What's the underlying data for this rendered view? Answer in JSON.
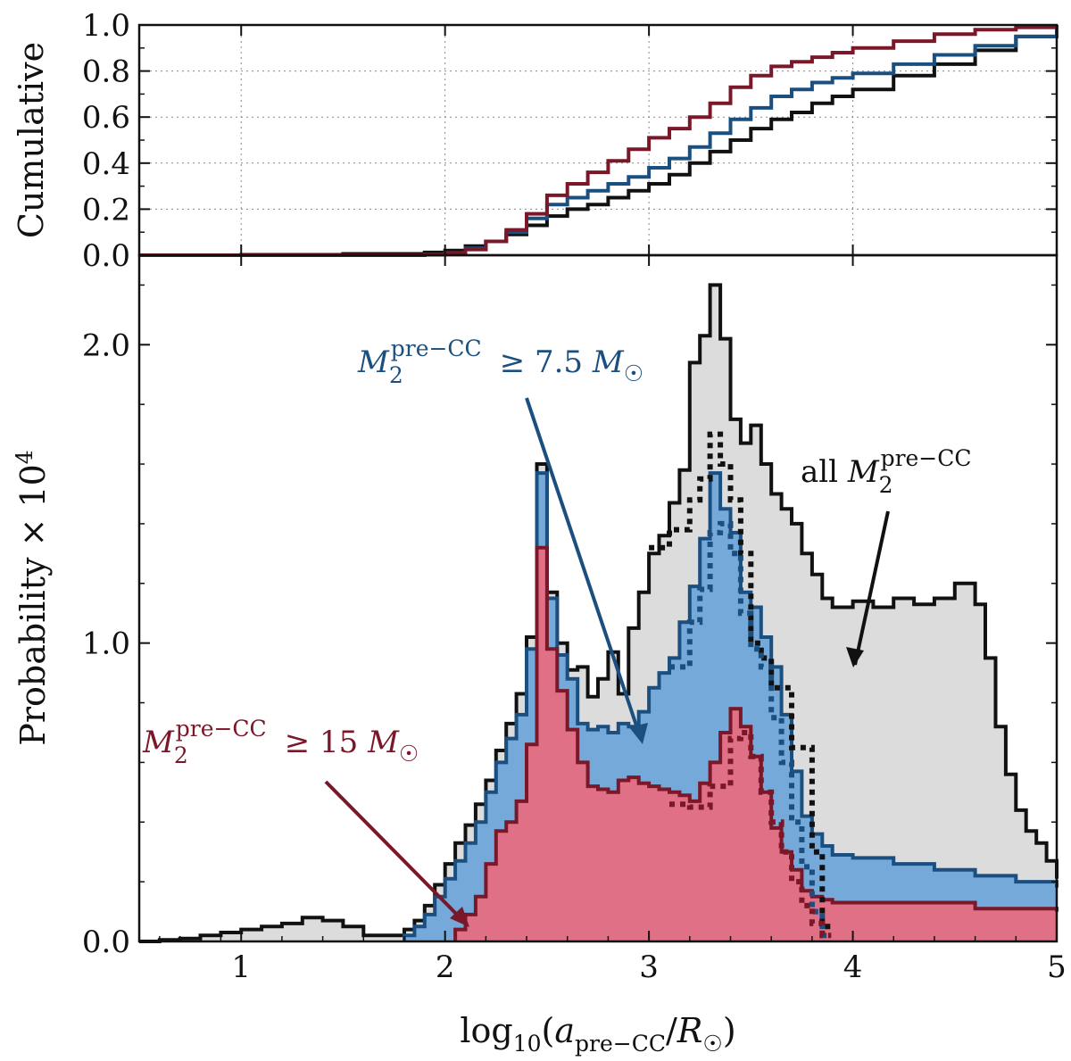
{
  "chart_data": [
    {
      "panel": "top",
      "type": "line",
      "ylabel": "Cumulative",
      "xlim": [
        0.5,
        5.0
      ],
      "ylim": [
        0.0,
        1.0
      ],
      "grid": true,
      "yticks": [
        0.0,
        0.2,
        0.4,
        0.6,
        0.8,
        1.0
      ],
      "ytick_labels": [
        "0.0",
        "0.2",
        "0.4",
        "0.6",
        "0.8",
        "1.0"
      ],
      "series": [
        {
          "name": "all",
          "color": "#111111",
          "x": [
            0.5,
            1.0,
            1.5,
            1.9,
            2.0,
            2.1,
            2.2,
            2.3,
            2.4,
            2.5,
            2.6,
            2.7,
            2.8,
            2.9,
            3.0,
            3.1,
            3.2,
            3.3,
            3.4,
            3.5,
            3.6,
            3.7,
            3.8,
            3.9,
            4.0,
            4.2,
            4.4,
            4.6,
            4.8,
            5.0
          ],
          "y": [
            0.0,
            0.002,
            0.006,
            0.012,
            0.02,
            0.04,
            0.06,
            0.09,
            0.13,
            0.17,
            0.2,
            0.22,
            0.25,
            0.28,
            0.31,
            0.35,
            0.4,
            0.45,
            0.5,
            0.55,
            0.59,
            0.62,
            0.66,
            0.69,
            0.72,
            0.78,
            0.83,
            0.89,
            0.95,
            1.0
          ]
        },
        {
          "name": "≥ 7.5",
          "color": "#1b4f80",
          "x": [
            0.5,
            1.5,
            1.9,
            2.0,
            2.1,
            2.2,
            2.3,
            2.4,
            2.5,
            2.6,
            2.7,
            2.8,
            2.9,
            3.0,
            3.1,
            3.2,
            3.3,
            3.4,
            3.5,
            3.6,
            3.7,
            3.8,
            3.9,
            4.0,
            4.2,
            4.4,
            4.6,
            4.8,
            5.0
          ],
          "y": [
            0.0,
            0.0,
            0.003,
            0.01,
            0.03,
            0.06,
            0.1,
            0.16,
            0.22,
            0.25,
            0.28,
            0.31,
            0.34,
            0.38,
            0.42,
            0.47,
            0.53,
            0.59,
            0.64,
            0.69,
            0.72,
            0.75,
            0.77,
            0.79,
            0.83,
            0.87,
            0.91,
            0.95,
            1.0
          ]
        },
        {
          "name": "≥ 15",
          "color": "#7a1728",
          "x": [
            0.5,
            1.5,
            1.9,
            2.0,
            2.1,
            2.2,
            2.3,
            2.4,
            2.5,
            2.6,
            2.7,
            2.8,
            2.9,
            3.0,
            3.1,
            3.2,
            3.3,
            3.4,
            3.5,
            3.6,
            3.7,
            3.8,
            3.9,
            4.0,
            4.2,
            4.4,
            4.6,
            4.8,
            5.0
          ],
          "y": [
            0.0,
            0.0,
            0.002,
            0.008,
            0.025,
            0.06,
            0.11,
            0.18,
            0.26,
            0.31,
            0.36,
            0.41,
            0.46,
            0.51,
            0.55,
            0.6,
            0.66,
            0.73,
            0.78,
            0.82,
            0.84,
            0.86,
            0.88,
            0.9,
            0.93,
            0.96,
            0.98,
            0.99,
            1.0
          ]
        }
      ]
    },
    {
      "panel": "bottom",
      "type": "area",
      "ylabel": "Probability × 10^4",
      "xlabel": "log10(a_pre−CC / R☉)",
      "xlim": [
        0.5,
        5.0
      ],
      "ylim": [
        0.0,
        2.3
      ],
      "yticks": [
        0.0,
        1.0,
        2.0
      ],
      "ytick_labels": [
        "0.0",
        "1.0",
        "2.0"
      ],
      "xticks": [
        1,
        2,
        3,
        4,
        5
      ],
      "xtick_labels": [
        "1",
        "2",
        "3",
        "4",
        "5"
      ],
      "series": [
        {
          "name": "all",
          "fill": "#dcdcdc",
          "stroke": "#111111",
          "x": [
            0.5,
            0.6,
            0.7,
            0.8,
            0.9,
            1.0,
            1.1,
            1.2,
            1.3,
            1.4,
            1.5,
            1.6,
            1.7,
            1.8,
            1.85,
            1.9,
            1.95,
            2.0,
            2.05,
            2.1,
            2.15,
            2.2,
            2.25,
            2.3,
            2.35,
            2.4,
            2.45,
            2.5,
            2.55,
            2.6,
            2.65,
            2.7,
            2.75,
            2.8,
            2.85,
            2.9,
            2.95,
            3.0,
            3.05,
            3.1,
            3.15,
            3.2,
            3.25,
            3.3,
            3.35,
            3.4,
            3.45,
            3.5,
            3.55,
            3.6,
            3.65,
            3.7,
            3.75,
            3.8,
            3.85,
            3.9,
            4.0,
            4.1,
            4.2,
            4.3,
            4.4,
            4.5,
            4.6,
            4.65,
            4.7,
            4.75,
            4.8,
            4.85,
            4.9,
            4.95,
            5.0
          ],
          "y": [
            0.0,
            0.005,
            0.01,
            0.02,
            0.03,
            0.04,
            0.05,
            0.06,
            0.08,
            0.07,
            0.05,
            0.02,
            0.02,
            0.04,
            0.07,
            0.12,
            0.19,
            0.26,
            0.33,
            0.39,
            0.46,
            0.54,
            0.64,
            0.73,
            0.83,
            1.02,
            1.6,
            1.17,
            1.0,
            0.91,
            0.92,
            0.82,
            0.88,
            0.97,
            0.83,
            1.05,
            1.17,
            1.3,
            1.36,
            1.47,
            1.58,
            1.94,
            2.03,
            2.2,
            2.02,
            1.75,
            1.67,
            1.73,
            1.6,
            1.5,
            1.45,
            1.4,
            1.3,
            1.23,
            1.15,
            1.12,
            1.14,
            1.12,
            1.15,
            1.13,
            1.15,
            1.2,
            1.13,
            0.95,
            0.72,
            0.56,
            0.44,
            0.37,
            0.33,
            0.27,
            0.21
          ]
        },
        {
          "name": "≥ 7.5",
          "fill": "#75a9d9",
          "stroke": "#1b4f80",
          "x": [
            1.8,
            1.85,
            1.9,
            1.95,
            2.0,
            2.05,
            2.1,
            2.15,
            2.2,
            2.25,
            2.3,
            2.35,
            2.4,
            2.45,
            2.5,
            2.55,
            2.6,
            2.65,
            2.7,
            2.75,
            2.8,
            2.85,
            2.9,
            2.95,
            3.0,
            3.05,
            3.1,
            3.15,
            3.2,
            3.25,
            3.3,
            3.35,
            3.4,
            3.45,
            3.5,
            3.55,
            3.6,
            3.65,
            3.7,
            3.75,
            3.8,
            3.85,
            3.9,
            4.0,
            4.2,
            4.4,
            4.6,
            4.8,
            5.0
          ],
          "y": [
            0.02,
            0.05,
            0.09,
            0.15,
            0.21,
            0.27,
            0.33,
            0.4,
            0.5,
            0.6,
            0.68,
            0.76,
            0.98,
            1.57,
            1.15,
            0.96,
            0.88,
            0.73,
            0.71,
            0.72,
            0.7,
            0.73,
            0.72,
            0.77,
            0.85,
            0.9,
            0.95,
            1.07,
            1.19,
            1.35,
            1.57,
            1.45,
            1.37,
            1.17,
            1.12,
            1.02,
            0.92,
            0.76,
            0.57,
            0.42,
            0.36,
            0.32,
            0.29,
            0.28,
            0.26,
            0.24,
            0.22,
            0.2,
            0.18
          ]
        },
        {
          "name": "≥ 15",
          "fill": "#df7085",
          "stroke": "#7a1728",
          "x": [
            2.05,
            2.1,
            2.15,
            2.2,
            2.25,
            2.3,
            2.35,
            2.4,
            2.45,
            2.5,
            2.55,
            2.6,
            2.65,
            2.7,
            2.75,
            2.8,
            2.85,
            2.9,
            2.95,
            3.0,
            3.05,
            3.1,
            3.15,
            3.2,
            3.25,
            3.3,
            3.35,
            3.4,
            3.45,
            3.5,
            3.55,
            3.6,
            3.65,
            3.7,
            3.75,
            3.8,
            3.85,
            3.9,
            4.2,
            4.6,
            5.0
          ],
          "y": [
            0.04,
            0.09,
            0.15,
            0.26,
            0.37,
            0.4,
            0.47,
            0.66,
            1.32,
            0.98,
            0.84,
            0.71,
            0.6,
            0.52,
            0.51,
            0.5,
            0.54,
            0.55,
            0.53,
            0.52,
            0.51,
            0.5,
            0.49,
            0.47,
            0.53,
            0.6,
            0.7,
            0.78,
            0.72,
            0.62,
            0.5,
            0.38,
            0.3,
            0.24,
            0.17,
            0.15,
            0.14,
            0.13,
            0.13,
            0.11,
            0.1
          ]
        }
      ],
      "dotted_series": [
        {
          "name": "all (alt)",
          "color": "#111111",
          "x": [
            3.0,
            3.1,
            3.2,
            3.25,
            3.3,
            3.35,
            3.4,
            3.45,
            3.5,
            3.55,
            3.6,
            3.7,
            3.8,
            3.85
          ],
          "y": [
            1.32,
            1.38,
            1.48,
            1.55,
            1.7,
            1.6,
            1.48,
            1.3,
            1.0,
            0.95,
            0.85,
            0.65,
            0.3,
            0.05
          ]
        },
        {
          "name": "≥ 7.5 (alt)",
          "color": "#1b4f80",
          "x": [
            3.1,
            3.2,
            3.25,
            3.3,
            3.35,
            3.4,
            3.45,
            3.5,
            3.55,
            3.6,
            3.65,
            3.7,
            3.75,
            3.8,
            3.85
          ],
          "y": [
            0.92,
            1.07,
            1.18,
            1.37,
            1.4,
            1.3,
            1.1,
            0.98,
            0.92,
            0.75,
            0.6,
            0.4,
            0.25,
            0.1,
            0.02
          ]
        },
        {
          "name": "≥ 15 (alt)",
          "color": "#7a1728",
          "x": [
            3.1,
            3.2,
            3.3,
            3.4,
            3.45,
            3.5,
            3.55,
            3.6,
            3.65,
            3.7,
            3.75,
            3.8,
            3.85
          ],
          "y": [
            0.46,
            0.45,
            0.52,
            0.68,
            0.7,
            0.62,
            0.5,
            0.4,
            0.3,
            0.2,
            0.12,
            0.06,
            0.02
          ]
        }
      ],
      "annotations": [
        {
          "text": "all M₂ pre−CC",
          "color": "#111111",
          "arrow_to": [
            4.0,
            1.0
          ]
        },
        {
          "text": "M₂ pre−CC ≥ 7.5 M☉",
          "color": "#1b4f80",
          "arrow_to": [
            2.98,
            0.72
          ]
        },
        {
          "text": "M₂ pre−CC ≥ 15 M☉",
          "color": "#7a1728",
          "arrow_to": [
            2.12,
            0.04
          ]
        }
      ]
    }
  ]
}
